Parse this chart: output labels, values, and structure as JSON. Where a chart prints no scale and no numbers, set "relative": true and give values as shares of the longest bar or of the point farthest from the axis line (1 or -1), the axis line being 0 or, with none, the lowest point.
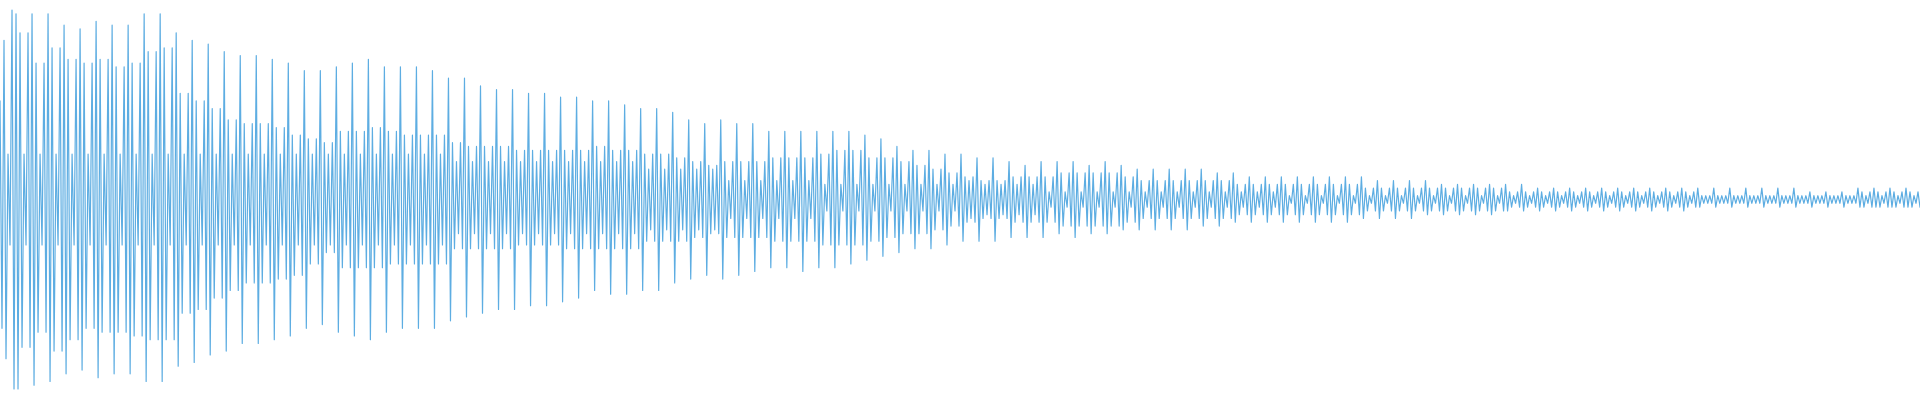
{
  "chart_data": {
    "type": "line",
    "relative": true,
    "color": "#5dade2",
    "categories": [
      null,
      null,
      null,
      null,
      null,
      null,
      null,
      null,
      null,
      null,
      null,
      null,
      null,
      null,
      null,
      null,
      null,
      null,
      null,
      null,
      null,
      null,
      null,
      null,
      null,
      null,
      null,
      null,
      null,
      null,
      null,
      null,
      null,
      null,
      null,
      null,
      null,
      null,
      null,
      null,
      null,
      null,
      null,
      null,
      null,
      null,
      null,
      null,
      null,
      null,
      null,
      null,
      null,
      null,
      null,
      null,
      null,
      null,
      null,
      null,
      null,
      null,
      null,
      null,
      null,
      null,
      null,
      null,
      null,
      null,
      null,
      null,
      null,
      null,
      null,
      null,
      null,
      null,
      null,
      null,
      null,
      null,
      null,
      null,
      null,
      null,
      null,
      null,
      null,
      null,
      null,
      null,
      null,
      null,
      null,
      null,
      null,
      null,
      null,
      null,
      null,
      null,
      null,
      null,
      null,
      null,
      null,
      null,
      null,
      null,
      null,
      null,
      null,
      null,
      null,
      null,
      null,
      null,
      null,
      null,
      null,
      null,
      null,
      null,
      null,
      null,
      null,
      null,
      null,
      null,
      null,
      null,
      null,
      null,
      null,
      null,
      null,
      null,
      null,
      null,
      null,
      null,
      null,
      null,
      null,
      null,
      null,
      null,
      null,
      null,
      null,
      null,
      null,
      null,
      null,
      null,
      null,
      null,
      null,
      null,
      null,
      null,
      null,
      null,
      null,
      null,
      null,
      null,
      null,
      null,
      null,
      null,
      null,
      null,
      null,
      null,
      null,
      null,
      null,
      null,
      null,
      null,
      null,
      null,
      null,
      null,
      null,
      null,
      null,
      null,
      null,
      null,
      null,
      null,
      null,
      null,
      null,
      null,
      null,
      null,
      null,
      null,
      null,
      null,
      null,
      null,
      null,
      null,
      null,
      null,
      null,
      null,
      null,
      null,
      null,
      null,
      null,
      null,
      null,
      null,
      null,
      null,
      null,
      null,
      null,
      null,
      null,
      null,
      null,
      null,
      null,
      null,
      null,
      null,
      null,
      null,
      null,
      null,
      null,
      null,
      null,
      null,
      null,
      null,
      null,
      null,
      null,
      null,
      null,
      null,
      null,
      null,
      null,
      null,
      null,
      null,
      null,
      null,
      null,
      null,
      null,
      null,
      null,
      null,
      null,
      null,
      null,
      null,
      null,
      null,
      null,
      null,
      null,
      null,
      null,
      null,
      null,
      null,
      null,
      null,
      null,
      null,
      null,
      null,
      null,
      null,
      null,
      null,
      null,
      null,
      null,
      null,
      null,
      null,
      null,
      null,
      null,
      null,
      null,
      null,
      null,
      null,
      null,
      null,
      null,
      null,
      null,
      null,
      null,
      null,
      null,
      null,
      null,
      null,
      null,
      null,
      null,
      null,
      null,
      null,
      null,
      null,
      null,
      null,
      null,
      null,
      null,
      null,
      null,
      null,
      null,
      null,
      null,
      null,
      null,
      null,
      null,
      null,
      null,
      null,
      null,
      null,
      null,
      null,
      null,
      null,
      null,
      null,
      null,
      null,
      null,
      null,
      null,
      null,
      null,
      null,
      null,
      null,
      null,
      null,
      null,
      null,
      null,
      null,
      null,
      null,
      null,
      null,
      null,
      null,
      null,
      null,
      null,
      null,
      null,
      null,
      null,
      null,
      null,
      null,
      null,
      null,
      null,
      null,
      null,
      null,
      null,
      null,
      null,
      null,
      null,
      null,
      null,
      null,
      null,
      null,
      null,
      null,
      null,
      null,
      null,
      null,
      null,
      null,
      null,
      null,
      null,
      null,
      null,
      null,
      null,
      null,
      null,
      null,
      null,
      null,
      null,
      null,
      null,
      null,
      null,
      null,
      null,
      null,
      null,
      null,
      null,
      null,
      null,
      null,
      null,
      null,
      null,
      null,
      null,
      null,
      null,
      null,
      null,
      null,
      null,
      null,
      null,
      null,
      null,
      null,
      null,
      null,
      null,
      null,
      null,
      null,
      null,
      null,
      null,
      null,
      null,
      null,
      null,
      null,
      null,
      null,
      null,
      null,
      null,
      null,
      null,
      null,
      null,
      null,
      null,
      null,
      null,
      null,
      null,
      null,
      null,
      null,
      null,
      null,
      null,
      null,
      null,
      null,
      null,
      null,
      null,
      null,
      null,
      null,
      null,
      null,
      null,
      null,
      null,
      null,
      null,
      null,
      null,
      null,
      null,
      null,
      null,
      null,
      null,
      null,
      null,
      null,
      null,
      null,
      null,
      null,
      null,
      null,
      null,
      null,
      null,
      null,
      null,
      null,
      null,
      null,
      null,
      null,
      null,
      null,
      null,
      null,
      null,
      null,
      null,
      null,
      null,
      null,
      null,
      null,
      null,
      null,
      null,
      null,
      null,
      null,
      null,
      null,
      null,
      null,
      null,
      null,
      null,
      null,
      null,
      null,
      null,
      null,
      null,
      null,
      null,
      null,
      null,
      null,
      null,
      null,
      null,
      null,
      null,
      null,
      null,
      null,
      null,
      null,
      null,
      null,
      null,
      null,
      null,
      null,
      null,
      null,
      null,
      null,
      null,
      null,
      null,
      null,
      null,
      null,
      null,
      null,
      null,
      null,
      null,
      null,
      null,
      null,
      null,
      null,
      null,
      null,
      null,
      null,
      null,
      null,
      null,
      null,
      null,
      null,
      null,
      null,
      null,
      null,
      null,
      null,
      null,
      null,
      null,
      null,
      null,
      null,
      null,
      null,
      null,
      null,
      null,
      null,
      null,
      null,
      null,
      null,
      null,
      null,
      null,
      null,
      null,
      null,
      null,
      null,
      null,
      null,
      null,
      null,
      null,
      null,
      null,
      null,
      null,
      null,
      null,
      null,
      null,
      null,
      null,
      null,
      null,
      null,
      null,
      null,
      null,
      null,
      null,
      null,
      null,
      null,
      null,
      null,
      null,
      null,
      null,
      null,
      null,
      null,
      null,
      null,
      null,
      null,
      null,
      null,
      null,
      null,
      null,
      null,
      null,
      null,
      null,
      null,
      null,
      null,
      null,
      null,
      null,
      null,
      null,
      null,
      null,
      null,
      null,
      null,
      null,
      null,
      null,
      null,
      null,
      null,
      null,
      null,
      null,
      null,
      null,
      null,
      null,
      null,
      null,
      null,
      null,
      null,
      null,
      null,
      null,
      null,
      null,
      null,
      null,
      null,
      null,
      null,
      null,
      null,
      null,
      null,
      null,
      null,
      null,
      null,
      null,
      null,
      null,
      null,
      null,
      null,
      null,
      null,
      null,
      null,
      null,
      null,
      null,
      null,
      null,
      null,
      null,
      null,
      null,
      null,
      null,
      null,
      null,
      null,
      null,
      null,
      null,
      null,
      null,
      null,
      null,
      null,
      null,
      null,
      null,
      null,
      null,
      null,
      null,
      null,
      null,
      null,
      null,
      null,
      null,
      null,
      null,
      null,
      null,
      null,
      null,
      null,
      null,
      null,
      null,
      null,
      null,
      null,
      null,
      null,
      null,
      null,
      null,
      null,
      null,
      null,
      null,
      null,
      null,
      null,
      null,
      null,
      null,
      null,
      null,
      null,
      null,
      null,
      null,
      null,
      null,
      null,
      null,
      null,
      null,
      null,
      null,
      null,
      null,
      null,
      null,
      null,
      null,
      null,
      null,
      null,
      null,
      null,
      null,
      null,
      null,
      null,
      null,
      null,
      null,
      null,
      null,
      null,
      null,
      null,
      null,
      null,
      null,
      null,
      null,
      null,
      null,
      null,
      null,
      null,
      null,
      null,
      null,
      null,
      null,
      null,
      null,
      null,
      null,
      null,
      null,
      null,
      null,
      null,
      null,
      null,
      null,
      null,
      null,
      null,
      null,
      null,
      null,
      null,
      null,
      null,
      null,
      null,
      null,
      null,
      null,
      null,
      null,
      null,
      null,
      null,
      null,
      null,
      null,
      null,
      null,
      null,
      null,
      null,
      null,
      null,
      null,
      null,
      null,
      null,
      null,
      null,
      null,
      null,
      null,
      null,
      null,
      null,
      null,
      null,
      null,
      null,
      null,
      null,
      null,
      null,
      null,
      null,
      null,
      null,
      null,
      null,
      null,
      null,
      null,
      null,
      null,
      null,
      null,
      null,
      null,
      null,
      null,
      null,
      null,
      null,
      null,
      null,
      null,
      null,
      null,
      null,
      null,
      null,
      null,
      null,
      null,
      null,
      null,
      null,
      null,
      null,
      null,
      null,
      null,
      null,
      null,
      null
    ],
    "values": [
      0.76,
      0.16,
      0.92,
      0.08,
      0.62,
      0.38,
      1,
      0,
      0.99,
      0,
      0.94,
      0.11,
      0.62,
      0.38,
      0.94,
      0.11,
      0.99,
      0.01,
      0.86,
      0.15,
      0.62,
      0.38,
      0.86,
      0.15,
      0.99,
      0.02,
      0.9,
      0.1,
      0.62,
      0.38,
      0.9,
      0.1,
      0.96,
      0.04,
      0.87,
      0.13,
      0.62,
      0.38,
      0.87,
      0.13,
      0.95,
      0.05,
      0.86,
      0.16,
      0.62,
      0.38,
      0.86,
      0.16,
      0.97,
      0.03,
      0.87,
      0.15,
      0.62,
      0.38,
      0.87,
      0.15,
      0.96,
      0.04,
      0.85,
      0.15,
      0.62,
      0.38,
      0.85,
      0.15,
      0.96,
      0.04,
      0.86,
      0.14,
      0.62,
      0.38,
      0.86,
      0.14,
      0.99,
      0.02,
      0.89,
      0.13,
      0.62,
      0.38,
      0.89,
      0.13,
      0.99,
      0.02,
      0.9,
      0.13,
      0.62,
      0.38,
      0.9,
      0.13,
      0.94,
      0.06,
      0.78,
      0.2,
      0.62,
      0.38,
      0.78,
      0.2,
      0.92,
      0.07,
      0.76,
      0.21,
      0.62,
      0.38,
      0.76,
      0.21,
      0.91,
      0.09,
      0.74,
      0.24,
      0.62,
      0.38,
      0.74,
      0.24,
      0.89,
      0.1,
      0.71,
      0.26,
      0.62,
      0.38,
      0.71,
      0.26,
      0.88,
      0.12,
      0.7,
      0.28,
      0.62,
      0.38,
      0.7,
      0.28,
      0.88,
      0.12,
      0.7,
      0.28,
      0.62,
      0.38,
      0.7,
      0.28,
      0.87,
      0.13,
      0.69,
      0.29,
      0.62,
      0.38,
      0.69,
      0.29,
      0.86,
      0.14,
      0.67,
      0.3,
      0.62,
      0.38,
      0.67,
      0.3,
      0.84,
      0.16,
      0.66,
      0.33,
      0.62,
      0.38,
      0.66,
      0.33,
      0.84,
      0.17,
      0.65,
      0.36,
      0.62,
      0.38,
      0.65,
      0.36,
      0.85,
      0.15,
      0.68,
      0.32,
      0.62,
      0.38,
      0.68,
      0.32,
      0.86,
      0.14,
      0.68,
      0.32,
      0.62,
      0.38,
      0.68,
      0.32,
      0.87,
      0.13,
      0.69,
      0.32,
      0.62,
      0.38,
      0.69,
      0.32,
      0.85,
      0.15,
      0.68,
      0.33,
      0.62,
      0.38,
      0.68,
      0.33,
      0.85,
      0.16,
      0.67,
      0.33,
      0.62,
      0.38,
      0.67,
      0.33,
      0.85,
      0.16,
      0.67,
      0.33,
      0.62,
      0.38,
      0.67,
      0.33,
      0.84,
      0.16,
      0.67,
      0.33,
      0.62,
      0.38,
      0.67,
      0.33,
      0.82,
      0.18,
      0.65,
      0.37,
      0.6,
      0.41,
      0.65,
      0.37,
      0.82,
      0.19,
      0.64,
      0.37,
      0.6,
      0.41,
      0.64,
      0.37,
      0.8,
      0.2,
      0.64,
      0.37,
      0.6,
      0.41,
      0.64,
      0.37,
      0.79,
      0.21,
      0.64,
      0.37,
      0.6,
      0.41,
      0.64,
      0.37,
      0.79,
      0.21,
      0.63,
      0.38,
      0.6,
      0.41,
      0.63,
      0.38,
      0.78,
      0.22,
      0.63,
      0.38,
      0.6,
      0.41,
      0.63,
      0.38,
      0.78,
      0.22,
      0.63,
      0.38,
      0.6,
      0.41,
      0.63,
      0.38,
      0.77,
      0.23,
      0.63,
      0.37,
      0.6,
      0.41,
      0.63,
      0.37,
      0.77,
      0.24,
      0.63,
      0.37,
      0.6,
      0.41,
      0.63,
      0.37,
      0.76,
      0.26,
      0.64,
      0.37,
      0.6,
      0.41,
      0.64,
      0.37,
      0.76,
      0.25,
      0.63,
      0.37,
      0.6,
      0.41,
      0.63,
      0.37,
      0.75,
      0.25,
      0.63,
      0.37,
      0.6,
      0.41,
      0.63,
      0.37,
      0.74,
      0.26,
      0.62,
      0.39,
      0.58,
      0.42,
      0.62,
      0.39,
      0.74,
      0.26,
      0.62,
      0.39,
      0.58,
      0.42,
      0.62,
      0.39,
      0.73,
      0.28,
      0.61,
      0.39,
      0.58,
      0.42,
      0.61,
      0.39,
      0.71,
      0.29,
      0.6,
      0.4,
      0.58,
      0.42,
      0.6,
      0.4,
      0.7,
      0.3,
      0.59,
      0.41,
      0.58,
      0.42,
      0.59,
      0.41,
      0.71,
      0.29,
      0.6,
      0.4,
      0.55,
      0.45,
      0.6,
      0.4,
      0.7,
      0.3,
      0.6,
      0.4,
      0.55,
      0.45,
      0.6,
      0.4,
      0.7,
      0.31,
      0.6,
      0.4,
      0.55,
      0.45,
      0.6,
      0.4,
      0.68,
      0.32,
      0.61,
      0.39,
      0.55,
      0.45,
      0.61,
      0.39,
      0.68,
      0.32,
      0.61,
      0.39,
      0.55,
      0.45,
      0.61,
      0.39,
      0.68,
      0.31,
      0.61,
      0.39,
      0.55,
      0.45,
      0.61,
      0.39,
      0.68,
      0.32,
      0.62,
      0.38,
      0.54,
      0.47,
      0.62,
      0.38,
      0.68,
      0.32,
      0.63,
      0.38,
      0.54,
      0.47,
      0.63,
      0.38,
      0.68,
      0.33,
      0.63,
      0.38,
      0.54,
      0.47,
      0.63,
      0.38,
      0.67,
      0.34,
      0.61,
      0.39,
      0.54,
      0.47,
      0.61,
      0.39,
      0.66,
      0.35,
      0.61,
      0.4,
      0.54,
      0.47,
      0.61,
      0.4,
      0.64,
      0.36,
      0.6,
      0.41,
      0.54,
      0.47,
      0.6,
      0.41,
      0.63,
      0.37,
      0.59,
      0.41,
      0.54,
      0.47,
      0.59,
      0.41,
      0.63,
      0.37,
      0.58,
      0.42,
      0.54,
      0.47,
      0.58,
      0.42,
      0.62,
      0.38,
      0.57,
      0.43,
      0.54,
      0.47,
      0.57,
      0.43,
      0.62,
      0.39,
      0.56,
      0.44,
      0.55,
      0.45,
      0.56,
      0.44,
      0.61,
      0.39,
      0.55,
      0.45,
      0.54,
      0.46,
      0.55,
      0.45,
      0.61,
      0.39,
      0.55,
      0.45,
      0.54,
      0.46,
      0.55,
      0.45,
      0.6,
      0.4,
      0.56,
      0.44,
      0.54,
      0.46,
      0.56,
      0.44,
      0.59,
      0.4,
      0.56,
      0.44,
      0.54,
      0.46,
      0.56,
      0.44,
      0.6,
      0.4,
      0.56,
      0.44,
      0.52,
      0.48,
      0.56,
      0.44,
      0.6,
      0.41,
      0.57,
      0.43,
      0.52,
      0.48,
      0.57,
      0.43,
      0.6,
      0.4,
      0.57,
      0.43,
      0.52,
      0.48,
      0.57,
      0.43,
      0.59,
      0.41,
      0.57,
      0.43,
      0.52,
      0.48,
      0.57,
      0.43,
      0.6,
      0.41,
      0.57,
      0.43,
      0.52,
      0.48,
      0.57,
      0.43,
      0.59,
      0.42,
      0.56,
      0.44,
      0.52,
      0.48,
      0.56,
      0.44,
      0.58,
      0.42,
      0.55,
      0.45,
      0.52,
      0.48,
      0.55,
      0.45,
      0.58,
      0.42,
      0.55,
      0.45,
      0.52,
      0.48,
      0.55,
      0.45,
      0.58,
      0.42,
      0.55,
      0.45,
      0.52,
      0.48,
      0.55,
      0.45,
      0.58,
      0.42,
      0.55,
      0.45,
      0.52,
      0.48,
      0.55,
      0.45,
      0.58,
      0.43,
      0.55,
      0.45,
      0.52,
      0.48,
      0.55,
      0.45,
      0.57,
      0.43,
      0.55,
      0.45,
      0.52,
      0.48,
      0.55,
      0.45,
      0.57,
      0.44,
      0.54,
      0.46,
      0.52,
      0.48,
      0.54,
      0.46,
      0.56,
      0.44,
      0.54,
      0.46,
      0.52,
      0.48,
      0.54,
      0.46,
      0.56,
      0.44,
      0.54,
      0.46,
      0.52,
      0.48,
      0.54,
      0.46,
      0.56,
      0.44,
      0.54,
      0.46,
      0.51,
      0.49,
      0.54,
      0.46,
      0.56,
      0.44,
      0.54,
      0.46,
      0.51,
      0.49,
      0.54,
      0.46,
      0.56,
      0.44,
      0.54,
      0.46,
      0.51,
      0.49,
      0.54,
      0.46,
      0.56,
      0.44,
      0.54,
      0.46,
      0.51,
      0.49,
      0.54,
      0.46,
      0.56,
      0.44,
      0.54,
      0.46,
      0.51,
      0.49,
      0.54,
      0.46,
      0.56,
      0.45,
      0.53,
      0.47,
      0.51,
      0.49,
      0.53,
      0.47,
      0.55,
      0.45,
      0.53,
      0.47,
      0.51,
      0.49,
      0.53,
      0.47,
      0.55,
      0.45,
      0.53,
      0.47,
      0.51,
      0.49,
      0.53,
      0.47,
      0.55,
      0.45,
      0.53,
      0.47,
      0.51,
      0.49,
      0.53,
      0.47,
      0.55,
      0.46,
      0.53,
      0.47,
      0.51,
      0.49,
      0.53,
      0.47,
      0.54,
      0.46,
      0.53,
      0.47,
      0.51,
      0.49,
      0.53,
      0.47,
      0.54,
      0.46,
      0.53,
      0.47,
      0.51,
      0.49,
      0.53,
      0.47,
      0.54,
      0.46,
      0.53,
      0.47,
      0.51,
      0.49,
      0.53,
      0.47,
      0.54,
      0.46,
      0.53,
      0.47,
      0.51,
      0.49,
      0.53,
      0.47,
      0.54,
      0.47,
      0.52,
      0.48,
      0.51,
      0.49,
      0.52,
      0.48,
      0.54,
      0.47,
      0.52,
      0.48,
      0.51,
      0.49,
      0.52,
      0.48,
      0.53,
      0.47,
      0.52,
      0.48,
      0.51,
      0.49,
      0.52,
      0.48,
      0.53,
      0.47,
      0.52,
      0.48,
      0.51,
      0.49,
      0.52,
      0.48,
      0.53,
      0.47,
      0.52,
      0.48,
      0.51,
      0.49,
      0.52,
      0.48,
      0.53,
      0.47,
      0.52,
      0.48,
      0.51,
      0.49,
      0.52,
      0.48,
      0.53,
      0.47,
      0.52,
      0.48,
      0.51,
      0.49,
      0.52,
      0.48,
      0.53,
      0.47,
      0.52,
      0.48,
      0.51,
      0.49,
      0.52,
      0.48,
      0.53,
      0.47,
      0.52,
      0.48,
      0.51,
      0.49,
      0.52,
      0.48,
      0.53,
      0.47,
      0.52,
      0.48,
      0.51,
      0.49,
      0.52,
      0.48,
      0.53,
      0.47,
      0.52,
      0.48,
      0.51,
      0.49,
      0.52,
      0.48,
      0.53,
      0.47,
      0.52,
      0.48,
      0.51,
      0.49,
      0.52,
      0.48,
      0.53,
      0.48,
      0.51,
      0.49,
      0.51,
      0.49,
      0.51,
      0.49,
      0.53,
      0.48,
      0.51,
      0.49,
      0.51,
      0.49,
      0.51,
      0.49,
      0.53,
      0.48,
      0.51,
      0.49,
      0.51,
      0.49,
      0.51,
      0.49,
      0.53,
      0.48,
      0.51,
      0.49,
      0.51,
      0.49,
      0.51,
      0.49,
      0.53,
      0.48,
      0.51,
      0.49,
      0.51,
      0.49,
      0.51,
      0.49,
      0.53,
      0.48,
      0.51,
      0.49,
      0.51,
      0.49,
      0.51,
      0.49,
      0.53,
      0.48,
      0.51,
      0.49,
      0.51,
      0.49,
      0.51,
      0.49,
      0.52,
      0.48,
      0.51,
      0.49,
      0.51,
      0.49,
      0.51,
      0.49,
      0.52,
      0.48,
      0.51,
      0.49,
      0.51,
      0.49,
      0.51,
      0.49,
      0.52,
      0.48,
      0.51,
      0.49,
      0.51,
      0.49,
      0.51,
      0.49,
      0.53,
      0.48,
      0.52,
      0.48,
      0.51,
      0.49,
      0.52,
      0.48,
      0.53,
      0.48,
      0.52,
      0.48,
      0.51,
      0.49,
      0.52,
      0.48,
      0.53,
      0.48,
      0.52,
      0.48,
      0.51,
      0.49,
      0.52,
      0.48,
      0.53,
      0.48,
      0.52,
      0.48,
      0.51,
      0.49,
      0.52,
      0.48
    ]
  }
}
